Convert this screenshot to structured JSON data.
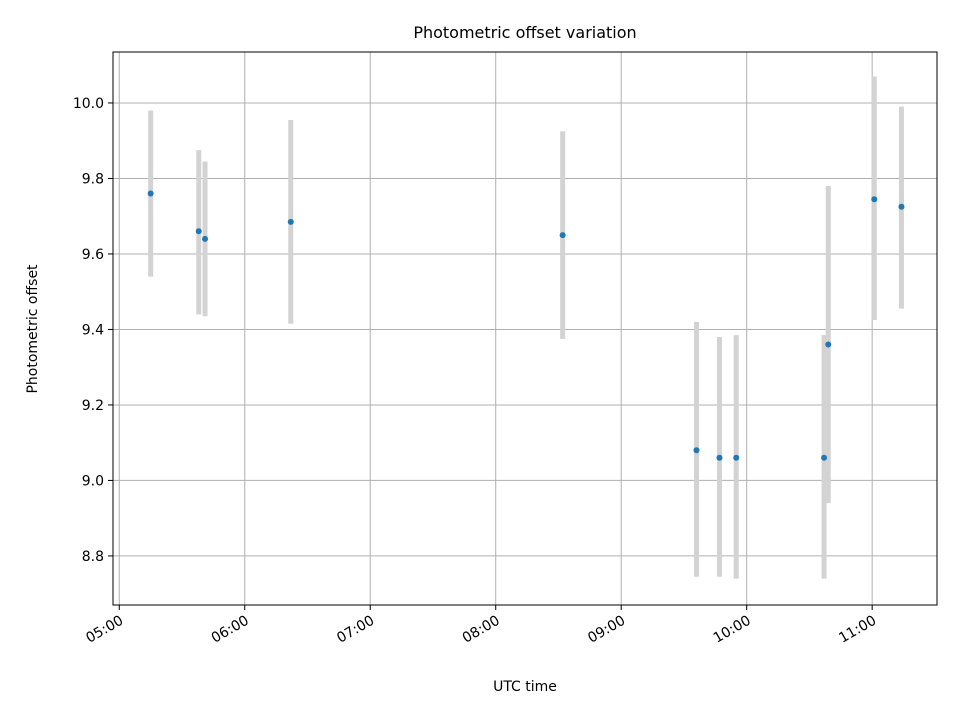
{
  "chart_data": {
    "type": "scatter",
    "title": "Photometric offset variation",
    "xlabel": "UTC time",
    "ylabel": "Photometric offset",
    "xlim": [
      "04:57",
      "11:31"
    ],
    "ylim": [
      8.67,
      10.135
    ],
    "x_ticks": [
      "05:00",
      "06:00",
      "07:00",
      "08:00",
      "09:00",
      "10:00",
      "11:00"
    ],
    "y_ticks": [
      "8.8",
      "9.0",
      "9.2",
      "9.4",
      "9.6",
      "9.8",
      "10.0"
    ],
    "grid": true,
    "points": [
      {
        "time": "05:15",
        "y": 9.76,
        "low": 9.54,
        "high": 9.98
      },
      {
        "time": "05:38",
        "y": 9.66,
        "low": 9.44,
        "high": 9.875
      },
      {
        "time": "05:41",
        "y": 9.64,
        "low": 9.435,
        "high": 9.845
      },
      {
        "time": "06:22",
        "y": 9.685,
        "low": 9.415,
        "high": 9.955
      },
      {
        "time": "08:32",
        "y": 9.65,
        "low": 9.375,
        "high": 9.925
      },
      {
        "time": "09:36",
        "y": 9.08,
        "low": 8.745,
        "high": 9.42
      },
      {
        "time": "09:47",
        "y": 9.06,
        "low": 8.745,
        "high": 9.38
      },
      {
        "time": "09:55",
        "y": 9.06,
        "low": 8.74,
        "high": 9.385
      },
      {
        "time": "10:37",
        "y": 9.06,
        "low": 8.74,
        "high": 9.385
      },
      {
        "time": "10:39",
        "y": 9.36,
        "low": 8.94,
        "high": 9.78
      },
      {
        "time": "11:01",
        "y": 9.745,
        "low": 9.425,
        "high": 10.07
      },
      {
        "time": "11:14",
        "y": 9.725,
        "low": 9.455,
        "high": 9.99
      }
    ],
    "colors": {
      "point": "#1f77b4",
      "errorbar": "#d3d3d3",
      "grid": "#b0b0b0",
      "axis": "#000000"
    }
  }
}
